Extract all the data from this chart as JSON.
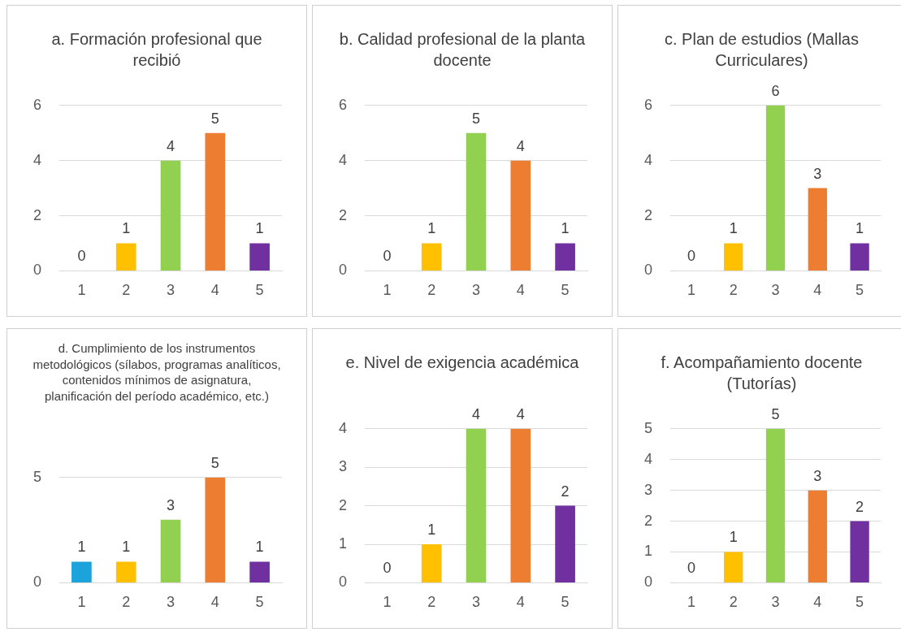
{
  "chart_data": [
    {
      "type": "bar",
      "title": "a. Formación profesional que recibió",
      "categories": [
        "1",
        "2",
        "3",
        "4",
        "5"
      ],
      "values": [
        0,
        1,
        4,
        5,
        1
      ],
      "colors": [
        "#1ca3dc",
        "#ffc000",
        "#92d050",
        "#ed7d31",
        "#7030a0"
      ],
      "ylim": [
        0,
        6
      ],
      "yticks": [
        0,
        2,
        4,
        6
      ],
      "grid": "y",
      "data_labels": true
    },
    {
      "type": "bar",
      "title": "b. Calidad profesional de la planta docente",
      "categories": [
        "1",
        "2",
        "3",
        "4",
        "5"
      ],
      "values": [
        0,
        1,
        5,
        4,
        1
      ],
      "colors": [
        "#1ca3dc",
        "#ffc000",
        "#92d050",
        "#ed7d31",
        "#7030a0"
      ],
      "ylim": [
        0,
        6
      ],
      "yticks": [
        0,
        2,
        4,
        6
      ],
      "grid": "y",
      "data_labels": true
    },
    {
      "type": "bar",
      "title": "c. Plan de estudios (Mallas Curriculares)",
      "categories": [
        "1",
        "2",
        "3",
        "4",
        "5"
      ],
      "values": [
        0,
        1,
        6,
        3,
        1
      ],
      "colors": [
        "#1ca3dc",
        "#ffc000",
        "#92d050",
        "#ed7d31",
        "#7030a0"
      ],
      "ylim": [
        0,
        6
      ],
      "yticks": [
        0,
        2,
        4,
        6
      ],
      "grid": "y",
      "data_labels": true
    },
    {
      "type": "bar",
      "title": "d. Cumplimiento de los instrumentos metodológicos (sílabos, programas analíticos, contenidos mínimos de asignatura, planificación del período académico, etc.)",
      "categories": [
        "1",
        "2",
        "3",
        "4",
        "5"
      ],
      "values": [
        1,
        1,
        3,
        5,
        1
      ],
      "colors": [
        "#1ca3dc",
        "#ffc000",
        "#92d050",
        "#ed7d31",
        "#7030a0"
      ],
      "ylim": [
        0,
        5
      ],
      "yticks": [
        0,
        5
      ],
      "grid": "y",
      "data_labels": true
    },
    {
      "type": "bar",
      "title": "e. Nivel de exigencia académica",
      "categories": [
        "1",
        "2",
        "3",
        "4",
        "5"
      ],
      "values": [
        0,
        1,
        4,
        4,
        2
      ],
      "colors": [
        "#1ca3dc",
        "#ffc000",
        "#92d050",
        "#ed7d31",
        "#7030a0"
      ],
      "ylim": [
        0,
        4
      ],
      "yticks": [
        0,
        1,
        2,
        3,
        4
      ],
      "grid": "y",
      "data_labels": true
    },
    {
      "type": "bar",
      "title": "f. Acompañamiento docente (Tutorías)",
      "categories": [
        "1",
        "2",
        "3",
        "4",
        "5"
      ],
      "values": [
        0,
        1,
        5,
        3,
        2
      ],
      "colors": [
        "#1ca3dc",
        "#ffc000",
        "#92d050",
        "#ed7d31",
        "#7030a0"
      ],
      "ylim": [
        0,
        5
      ],
      "yticks": [
        0,
        1,
        2,
        3,
        4,
        5
      ],
      "grid": "y",
      "data_labels": true
    }
  ]
}
